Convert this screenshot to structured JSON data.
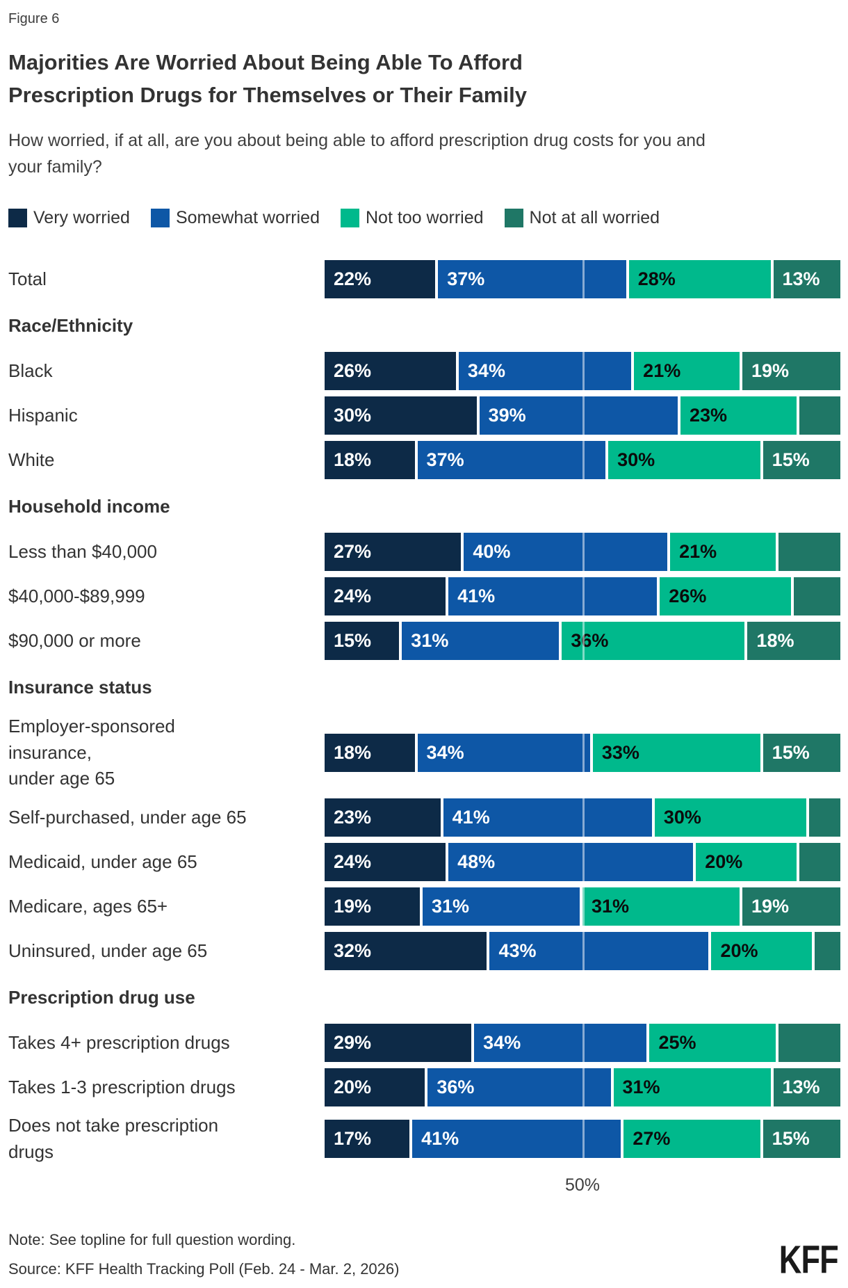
{
  "figure_label": "Figure 6",
  "title": "Majorities Are Worried About Being Able To Afford\nPrescription Drugs for Themselves or Their Family",
  "subtitle": "How worried, if at all, are you about being able to afford prescription drug costs for you and your family?",
  "legend": [
    {
      "label": "Very worried",
      "color": "#0D2A47"
    },
    {
      "label": "Somewhat worried",
      "color": "#0E57A6"
    },
    {
      "label": "Not too worried",
      "color": "#00B98C"
    },
    {
      "label": "Not at all worried",
      "color": "#1F7766"
    }
  ],
  "segment_text_colors": [
    "#ffffff",
    "#ffffff",
    "#0b0b0b",
    "#ffffff"
  ],
  "axis": {
    "mid_label": "50%"
  },
  "note": "Note: See topline for full question wording.",
  "source": "Source: KFF Health Tracking Poll (Feb. 24 - Mar. 2, 2026)",
  "logo": "KFF",
  "chart_data": {
    "type": "bar",
    "stacked": true,
    "orientation": "horizontal",
    "xlim": [
      0,
      100
    ],
    "gridline_at": 50,
    "legend_position": "top",
    "series_names": [
      "Very worried",
      "Somewhat worried",
      "Not too worried",
      "Not at all worried"
    ],
    "groups": [
      {
        "header": "",
        "rows": [
          {
            "label": "Total",
            "values": [
              22,
              37,
              28,
              13
            ],
            "segment_labels": [
              "22%",
              "37%",
              "28%",
              "13%"
            ]
          }
        ]
      },
      {
        "header": "Race/Ethnicity",
        "rows": [
          {
            "label": "Black",
            "values": [
              26,
              34,
              21,
              19
            ],
            "segment_labels": [
              "26%",
              "34%",
              "21%",
              "19%"
            ]
          },
          {
            "label": "Hispanic",
            "values": [
              30,
              39,
              23,
              8
            ],
            "segment_labels": [
              "30%",
              "39%",
              "23%",
              ""
            ]
          },
          {
            "label": "White",
            "values": [
              18,
              37,
              30,
              15
            ],
            "segment_labels": [
              "18%",
              "37%",
              "30%",
              "15%"
            ]
          }
        ]
      },
      {
        "header": "Household income",
        "rows": [
          {
            "label": "Less than $40,000",
            "values": [
              27,
              40,
              21,
              12
            ],
            "segment_labels": [
              "27%",
              "40%",
              "21%",
              ""
            ]
          },
          {
            "label": "$40,000-$89,999",
            "values": [
              24,
              41,
              26,
              9
            ],
            "segment_labels": [
              "24%",
              "41%",
              "26%",
              ""
            ]
          },
          {
            "label": "$90,000 or more",
            "values": [
              15,
              31,
              36,
              18
            ],
            "segment_labels": [
              "15%",
              "31%",
              "36%",
              "18%"
            ]
          }
        ]
      },
      {
        "header": "Insurance status",
        "rows": [
          {
            "label": "Employer-sponsored\ninsurance,\nunder age 65",
            "values": [
              18,
              34,
              33,
              15
            ],
            "segment_labels": [
              "18%",
              "34%",
              "33%",
              "15%"
            ]
          },
          {
            "label": "Self-purchased, under age 65",
            "values": [
              23,
              41,
              30,
              6
            ],
            "segment_labels": [
              "23%",
              "41%",
              "30%",
              ""
            ]
          },
          {
            "label": "Medicaid, under age 65",
            "values": [
              24,
              48,
              20,
              8
            ],
            "segment_labels": [
              "24%",
              "48%",
              "20%",
              ""
            ]
          },
          {
            "label": "Medicare, ages 65+",
            "values": [
              19,
              31,
              31,
              19
            ],
            "segment_labels": [
              "19%",
              "31%",
              "31%",
              "19%"
            ]
          },
          {
            "label": "Uninsured, under age 65",
            "values": [
              32,
              43,
              20,
              5
            ],
            "segment_labels": [
              "32%",
              "43%",
              "20%",
              ""
            ]
          }
        ]
      },
      {
        "header": "Prescription drug use",
        "rows": [
          {
            "label": "Takes 4+ prescription drugs",
            "values": [
              29,
              34,
              25,
              12
            ],
            "segment_labels": [
              "29%",
              "34%",
              "25%",
              ""
            ]
          },
          {
            "label": "Takes 1-3 prescription drugs",
            "values": [
              20,
              36,
              31,
              13
            ],
            "segment_labels": [
              "20%",
              "36%",
              "31%",
              "13%"
            ]
          },
          {
            "label": "Does not take prescription\ndrugs",
            "values": [
              17,
              41,
              27,
              15
            ],
            "segment_labels": [
              "17%",
              "41%",
              "27%",
              "15%"
            ]
          }
        ]
      }
    ]
  }
}
